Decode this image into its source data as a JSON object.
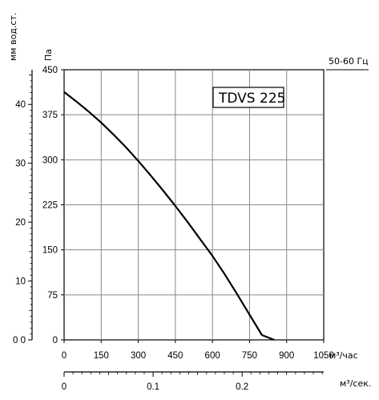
{
  "chart_data": {
    "type": "line",
    "title": "TDVS 225",
    "frequency_label": "50-60 Гц",
    "y_left_label": "мм вод.ст.",
    "y_left_ticks": [
      "40",
      "30",
      "20",
      "10",
      "0 0"
    ],
    "y_left_values": [
      40,
      30,
      20,
      10,
      0
    ],
    "y_label": "Па",
    "y_ticks": [
      "450",
      "375",
      "300",
      "225",
      "150",
      "75",
      "0"
    ],
    "ylim": [
      0,
      450
    ],
    "x_label": "м³/час",
    "x_ticks": [
      "0",
      "150",
      "300",
      "450",
      "600",
      "750",
      "900",
      "1050"
    ],
    "xlim": [
      0,
      1050
    ],
    "x2_label": "м³/сек.",
    "x2_ticks": [
      "0",
      "0.1",
      "0.2"
    ],
    "x2_values": [
      0,
      0.1,
      0.2
    ],
    "grid": true,
    "series": [
      {
        "x": [
          0,
          50,
          100,
          150,
          200,
          250,
          300,
          350,
          400,
          450,
          500,
          550,
          600,
          650,
          700,
          750,
          800,
          850
        ],
        "y": [
          413,
          397,
          380,
          362,
          342,
          321,
          298,
          274,
          249,
          223,
          196,
          168,
          140,
          109,
          76,
          42,
          8,
          0
        ]
      }
    ]
  }
}
